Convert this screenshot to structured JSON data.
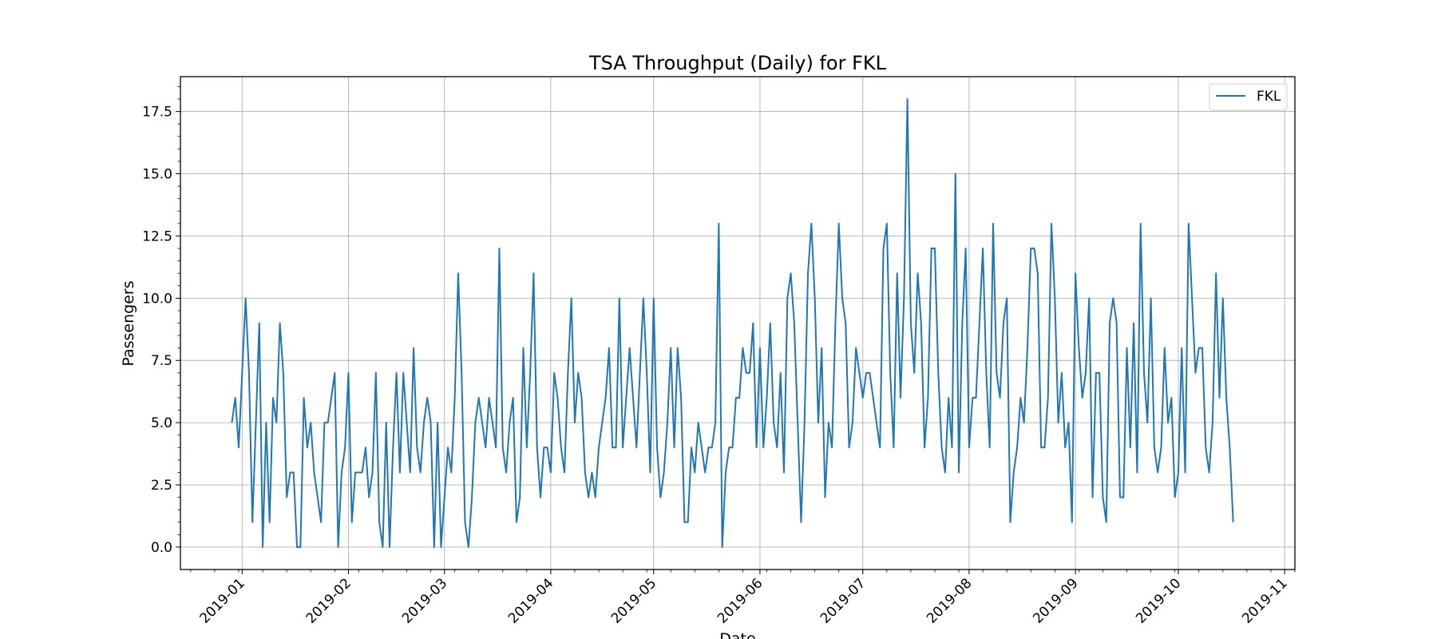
{
  "chart_data": {
    "type": "line",
    "title": "TSA Throughput (Daily) for FKL",
    "xlabel": "Date",
    "ylabel": "Passengers",
    "x_start": "2018-12-29",
    "x_step": "1 day",
    "xlim": [
      "2018-12-14",
      "2019-11-04"
    ],
    "ylim": [
      -0.9,
      18.9
    ],
    "x_ticks": [
      "2019-01",
      "2019-02",
      "2019-03",
      "2019-04",
      "2019-05",
      "2019-06",
      "2019-07",
      "2019-08",
      "2019-09",
      "2019-10",
      "2019-11"
    ],
    "y_ticks": [
      "0.0",
      "2.5",
      "5.0",
      "7.5",
      "10.0",
      "12.5",
      "15.0",
      "17.5"
    ],
    "grid": true,
    "legend_position": "top-right",
    "series": [
      {
        "name": "FKL",
        "color": "#1f77b4",
        "values": [
          5,
          6,
          4,
          7,
          10,
          7,
          1,
          5,
          9,
          0,
          5,
          1,
          6,
          5,
          9,
          7,
          2,
          3,
          3,
          0,
          0,
          6,
          4,
          5,
          3,
          2,
          1,
          5,
          5,
          6,
          7,
          0,
          3,
          4,
          7,
          1,
          3,
          3,
          3,
          4,
          2,
          3,
          7,
          1,
          0,
          5,
          0,
          4,
          7,
          3,
          7,
          5,
          3,
          8,
          4,
          3,
          5,
          6,
          5,
          0,
          5,
          0,
          2,
          4,
          3,
          6,
          11,
          7,
          1,
          0,
          2,
          5,
          6,
          5,
          4,
          6,
          5,
          4,
          12,
          4,
          3,
          5,
          6,
          1,
          2,
          8,
          4,
          7,
          11,
          4,
          2,
          4,
          4,
          3,
          7,
          6,
          4,
          3,
          7,
          10,
          5,
          7,
          6,
          3,
          2,
          3,
          2,
          4,
          5,
          6,
          8,
          4,
          4,
          10,
          4,
          6,
          8,
          6,
          4,
          7,
          10,
          7,
          3,
          10,
          4,
          2,
          3,
          5,
          8,
          4,
          8,
          6,
          1,
          1,
          4,
          3,
          5,
          4,
          3,
          4,
          4,
          5,
          13,
          0,
          3,
          4,
          4,
          6,
          6,
          8,
          7,
          7,
          9,
          4,
          8,
          4,
          6,
          9,
          5,
          4,
          7,
          3,
          10,
          11,
          9,
          5,
          1,
          5,
          11,
          13,
          10,
          5,
          8,
          2,
          5,
          4,
          9,
          13,
          10,
          9,
          4,
          5,
          8,
          7,
          6,
          7,
          7,
          6,
          5,
          4,
          12,
          13,
          7,
          4,
          11,
          6,
          10,
          18,
          9,
          7,
          11,
          9,
          4,
          6,
          12,
          12,
          7,
          4,
          3,
          6,
          4,
          15,
          3,
          9,
          12,
          4,
          6,
          6,
          9,
          12,
          7,
          4,
          13,
          7,
          6,
          9,
          10,
          1,
          3,
          4,
          6,
          5,
          8,
          12,
          12,
          11,
          4,
          4,
          6,
          13,
          10,
          5,
          7,
          4,
          5,
          1,
          11,
          8,
          6,
          7,
          10,
          2,
          7,
          7,
          2,
          1,
          9,
          10,
          9,
          2,
          2,
          8,
          4,
          9,
          3,
          13,
          7,
          5,
          10,
          4,
          3,
          4,
          8,
          5,
          6,
          2,
          3,
          8,
          3,
          13,
          10,
          7,
          8,
          8,
          4,
          3,
          5,
          11,
          6,
          10,
          6,
          4,
          1
        ]
      }
    ]
  }
}
